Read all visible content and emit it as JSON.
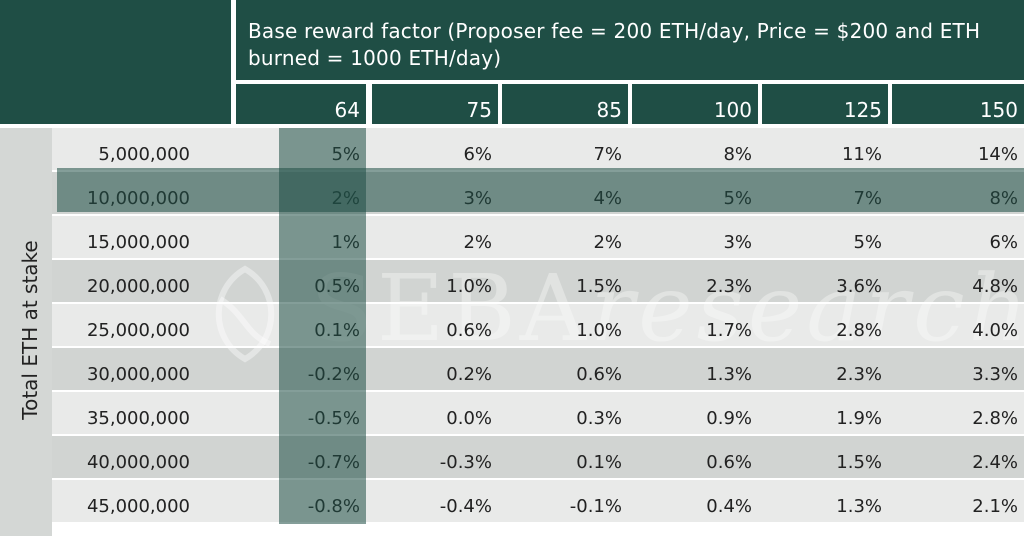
{
  "header": {
    "title": "Base reward factor (Proposer fee = 200 ETH/day, Price = $200 and ETH burned = 1000 ETH/day)"
  },
  "y_axis_label": "Total ETH at stake",
  "watermark": {
    "brand": "SEBA",
    "suffix": "research"
  },
  "chart_data": {
    "type": "table",
    "title": "Base reward factor (Proposer fee = 200 ETH/day, Price = $200 and ETH burned = 1000 ETH/day)",
    "columns": [
      "64",
      "75",
      "85",
      "100",
      "125",
      "150"
    ],
    "row_axis_label": "Total ETH at stake",
    "rows": [
      {
        "label": "5,000,000",
        "values": [
          "5%",
          "6%",
          "7%",
          "8%",
          "11%",
          "14%"
        ]
      },
      {
        "label": "10,000,000",
        "values": [
          "2%",
          "3%",
          "4%",
          "5%",
          "7%",
          "8%"
        ]
      },
      {
        "label": "15,000,000",
        "values": [
          "1%",
          "2%",
          "2%",
          "3%",
          "5%",
          "6%"
        ]
      },
      {
        "label": "20,000,000",
        "values": [
          "0.5%",
          "1.0%",
          "1.5%",
          "2.3%",
          "3.6%",
          "4.8%"
        ]
      },
      {
        "label": "25,000,000",
        "values": [
          "0.1%",
          "0.6%",
          "1.0%",
          "1.7%",
          "2.8%",
          "4.0%"
        ]
      },
      {
        "label": "30,000,000",
        "values": [
          "-0.2%",
          "0.2%",
          "0.6%",
          "1.3%",
          "2.3%",
          "3.3%"
        ]
      },
      {
        "label": "35,000,000",
        "values": [
          "-0.5%",
          "0.0%",
          "0.3%",
          "0.9%",
          "1.9%",
          "2.8%"
        ]
      },
      {
        "label": "40,000,000",
        "values": [
          "-0.7%",
          "-0.3%",
          "0.1%",
          "0.6%",
          "1.5%",
          "2.4%"
        ]
      },
      {
        "label": "45,000,000",
        "values": [
          "-0.8%",
          "-0.4%",
          "-0.1%",
          "0.4%",
          "1.3%",
          "2.1%"
        ]
      }
    ],
    "highlighted_column": "64",
    "highlighted_row": "10,000,000"
  },
  "colors": {
    "header": "#1f4e45",
    "band_light": "#e9eae9",
    "band_dark": "#d1d4d2",
    "highlight": "#1f4e45"
  }
}
